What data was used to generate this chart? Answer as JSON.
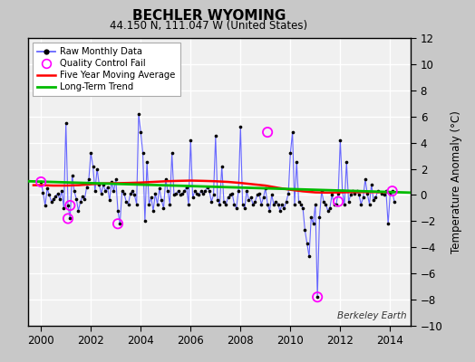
{
  "title": "BECHLER WYOMING",
  "subtitle": "44.150 N, 111.047 W (United States)",
  "ylabel": "Temperature Anomaly (°C)",
  "watermark": "Berkeley Earth",
  "xlim": [
    1999.5,
    2014.83
  ],
  "ylim": [
    -10,
    12
  ],
  "yticks": [
    -10,
    -8,
    -6,
    -4,
    -2,
    0,
    2,
    4,
    6,
    8,
    10,
    12
  ],
  "xticks": [
    2000,
    2002,
    2004,
    2006,
    2008,
    2010,
    2012,
    2014
  ],
  "bg_color": "#f0f0f0",
  "grid_color": "#ffffff",
  "raw_color": "#6666ff",
  "dot_color": "#000000",
  "ma_color": "#ff0000",
  "trend_color": "#00bb00",
  "qc_color": "#ff00ff",
  "raw_data": [
    [
      2000.0,
      1.0
    ],
    [
      2000.083,
      0.2
    ],
    [
      2000.167,
      -0.8
    ],
    [
      2000.25,
      0.5
    ],
    [
      2000.333,
      0.0
    ],
    [
      2000.417,
      -0.5
    ],
    [
      2000.5,
      -0.3
    ],
    [
      2000.583,
      -0.1
    ],
    [
      2000.667,
      0.1
    ],
    [
      2000.75,
      -0.3
    ],
    [
      2000.833,
      0.3
    ],
    [
      2000.917,
      -1.0
    ],
    [
      2001.0,
      5.5
    ],
    [
      2001.083,
      -0.8
    ],
    [
      2001.167,
      -1.8
    ],
    [
      2001.25,
      1.5
    ],
    [
      2001.333,
      0.3
    ],
    [
      2001.417,
      -0.3
    ],
    [
      2001.5,
      -1.2
    ],
    [
      2001.583,
      -0.5
    ],
    [
      2001.667,
      -0.1
    ],
    [
      2001.75,
      -0.3
    ],
    [
      2001.833,
      0.6
    ],
    [
      2001.917,
      1.2
    ],
    [
      2002.0,
      3.2
    ],
    [
      2002.083,
      2.2
    ],
    [
      2002.167,
      0.3
    ],
    [
      2002.25,
      2.0
    ],
    [
      2002.333,
      0.8
    ],
    [
      2002.417,
      0.1
    ],
    [
      2002.5,
      0.8
    ],
    [
      2002.583,
      0.3
    ],
    [
      2002.667,
      0.6
    ],
    [
      2002.75,
      -0.4
    ],
    [
      2002.833,
      1.0
    ],
    [
      2002.917,
      0.3
    ],
    [
      2003.0,
      1.2
    ],
    [
      2003.083,
      -1.2
    ],
    [
      2003.167,
      -2.2
    ],
    [
      2003.25,
      0.3
    ],
    [
      2003.333,
      0.1
    ],
    [
      2003.417,
      -0.5
    ],
    [
      2003.5,
      -0.7
    ],
    [
      2003.583,
      0.1
    ],
    [
      2003.667,
      0.3
    ],
    [
      2003.75,
      0.0
    ],
    [
      2003.833,
      -0.7
    ],
    [
      2003.917,
      6.2
    ],
    [
      2004.0,
      4.8
    ],
    [
      2004.083,
      3.2
    ],
    [
      2004.167,
      -2.0
    ],
    [
      2004.25,
      2.5
    ],
    [
      2004.333,
      -0.7
    ],
    [
      2004.417,
      -0.2
    ],
    [
      2004.5,
      -1.2
    ],
    [
      2004.583,
      0.1
    ],
    [
      2004.667,
      -0.7
    ],
    [
      2004.75,
      0.5
    ],
    [
      2004.833,
      -0.4
    ],
    [
      2004.917,
      -1.0
    ],
    [
      2005.0,
      1.2
    ],
    [
      2005.083,
      0.3
    ],
    [
      2005.167,
      -0.7
    ],
    [
      2005.25,
      3.2
    ],
    [
      2005.333,
      0.0
    ],
    [
      2005.417,
      0.1
    ],
    [
      2005.5,
      0.3
    ],
    [
      2005.583,
      0.0
    ],
    [
      2005.667,
      0.1
    ],
    [
      2005.75,
      0.3
    ],
    [
      2005.833,
      0.6
    ],
    [
      2005.917,
      -0.7
    ],
    [
      2006.0,
      4.2
    ],
    [
      2006.083,
      -0.2
    ],
    [
      2006.167,
      0.3
    ],
    [
      2006.25,
      0.1
    ],
    [
      2006.333,
      0.0
    ],
    [
      2006.417,
      0.3
    ],
    [
      2006.5,
      0.1
    ],
    [
      2006.583,
      0.3
    ],
    [
      2006.667,
      0.6
    ],
    [
      2006.75,
      0.3
    ],
    [
      2006.833,
      -0.5
    ],
    [
      2006.917,
      0.0
    ],
    [
      2007.0,
      4.5
    ],
    [
      2007.083,
      -0.4
    ],
    [
      2007.167,
      -0.7
    ],
    [
      2007.25,
      2.2
    ],
    [
      2007.333,
      -0.5
    ],
    [
      2007.417,
      -0.7
    ],
    [
      2007.5,
      -0.2
    ],
    [
      2007.583,
      0.0
    ],
    [
      2007.667,
      0.1
    ],
    [
      2007.75,
      -0.7
    ],
    [
      2007.833,
      -1.0
    ],
    [
      2007.917,
      0.3
    ],
    [
      2008.0,
      5.2
    ],
    [
      2008.083,
      -0.7
    ],
    [
      2008.167,
      -1.0
    ],
    [
      2008.25,
      0.3
    ],
    [
      2008.333,
      -0.4
    ],
    [
      2008.417,
      -0.2
    ],
    [
      2008.5,
      -0.7
    ],
    [
      2008.583,
      -0.5
    ],
    [
      2008.667,
      0.0
    ],
    [
      2008.75,
      0.1
    ],
    [
      2008.833,
      -0.7
    ],
    [
      2008.917,
      -0.2
    ],
    [
      2009.0,
      0.5
    ],
    [
      2009.083,
      -0.7
    ],
    [
      2009.167,
      -1.2
    ],
    [
      2009.25,
      0.0
    ],
    [
      2009.333,
      -0.7
    ],
    [
      2009.417,
      -0.5
    ],
    [
      2009.5,
      -0.7
    ],
    [
      2009.583,
      -1.2
    ],
    [
      2009.667,
      -0.7
    ],
    [
      2009.75,
      -1.0
    ],
    [
      2009.833,
      -0.5
    ],
    [
      2009.917,
      0.1
    ],
    [
      2010.0,
      3.2
    ],
    [
      2010.083,
      4.8
    ],
    [
      2010.167,
      -0.7
    ],
    [
      2010.25,
      2.5
    ],
    [
      2010.333,
      -0.5
    ],
    [
      2010.417,
      -0.7
    ],
    [
      2010.5,
      -1.0
    ],
    [
      2010.583,
      -2.7
    ],
    [
      2010.667,
      -3.7
    ],
    [
      2010.75,
      -4.7
    ],
    [
      2010.833,
      -1.7
    ],
    [
      2010.917,
      -2.2
    ],
    [
      2011.0,
      -0.7
    ],
    [
      2011.083,
      -7.8
    ],
    [
      2011.167,
      -1.7
    ],
    [
      2011.25,
      0.3
    ],
    [
      2011.333,
      -0.5
    ],
    [
      2011.417,
      -0.7
    ],
    [
      2011.5,
      -1.2
    ],
    [
      2011.583,
      -1.0
    ],
    [
      2011.667,
      0.0
    ],
    [
      2011.75,
      -0.7
    ],
    [
      2011.833,
      -0.7
    ],
    [
      2011.917,
      0.1
    ],
    [
      2012.0,
      4.2
    ],
    [
      2012.083,
      0.3
    ],
    [
      2012.167,
      -0.7
    ],
    [
      2012.25,
      2.5
    ],
    [
      2012.333,
      -0.5
    ],
    [
      2012.417,
      0.0
    ],
    [
      2012.5,
      0.3
    ],
    [
      2012.583,
      0.1
    ],
    [
      2012.667,
      0.3
    ],
    [
      2012.75,
      0.0
    ],
    [
      2012.833,
      -0.7
    ],
    [
      2012.917,
      -0.2
    ],
    [
      2013.0,
      1.2
    ],
    [
      2013.083,
      0.1
    ],
    [
      2013.167,
      -0.7
    ],
    [
      2013.25,
      0.8
    ],
    [
      2013.333,
      -0.4
    ],
    [
      2013.417,
      -0.2
    ],
    [
      2013.5,
      0.3
    ],
    [
      2013.667,
      0.1
    ],
    [
      2013.75,
      0.0
    ],
    [
      2013.833,
      0.3
    ],
    [
      2013.917,
      -2.2
    ],
    [
      2014.0,
      0.1
    ],
    [
      2014.083,
      0.3
    ],
    [
      2014.167,
      -0.5
    ]
  ],
  "qc_fail_points": [
    [
      2000.0,
      1.0
    ],
    [
      2001.083,
      -1.8
    ],
    [
      2001.167,
      -0.8
    ],
    [
      2003.083,
      -2.2
    ],
    [
      2009.083,
      4.8
    ],
    [
      2011.083,
      -7.8
    ],
    [
      2011.917,
      -0.5
    ],
    [
      2014.083,
      0.3
    ]
  ],
  "moving_avg": [
    [
      1999.7,
      0.75
    ],
    [
      2000.0,
      0.75
    ],
    [
      2000.5,
      0.72
    ],
    [
      2001.0,
      0.72
    ],
    [
      2001.5,
      0.75
    ],
    [
      2002.0,
      0.82
    ],
    [
      2002.5,
      0.88
    ],
    [
      2003.0,
      0.9
    ],
    [
      2003.5,
      0.92
    ],
    [
      2004.0,
      0.95
    ],
    [
      2004.5,
      1.0
    ],
    [
      2005.0,
      1.05
    ],
    [
      2005.5,
      1.08
    ],
    [
      2006.0,
      1.1
    ],
    [
      2006.5,
      1.08
    ],
    [
      2007.0,
      1.05
    ],
    [
      2007.5,
      1.0
    ],
    [
      2008.0,
      0.92
    ],
    [
      2008.5,
      0.82
    ],
    [
      2009.0,
      0.72
    ],
    [
      2009.5,
      0.55
    ],
    [
      2010.0,
      0.4
    ],
    [
      2010.5,
      0.28
    ],
    [
      2011.0,
      0.2
    ],
    [
      2011.5,
      0.18
    ],
    [
      2012.0,
      0.2
    ],
    [
      2012.5,
      0.22
    ],
    [
      2013.0,
      0.22
    ],
    [
      2013.5,
      0.22
    ],
    [
      2013.917,
      0.22
    ]
  ],
  "trend_line": [
    [
      1999.5,
      1.05
    ],
    [
      2014.83,
      0.18
    ]
  ]
}
